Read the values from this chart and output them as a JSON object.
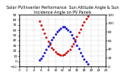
{
  "title": "Solar PV/Inverter Performance  Sun Altitude Angle & Sun Incidence Angle on PV Panels",
  "xlim": [
    0,
    24
  ],
  "ylim_left": [
    -10,
    90
  ],
  "ylim_right": [
    0,
    120
  ],
  "blue_x": [
    5.5,
    6.0,
    6.5,
    7.0,
    7.5,
    8.0,
    8.5,
    9.0,
    9.5,
    10.0,
    10.5,
    11.0,
    11.5,
    12.0,
    12.5,
    13.0,
    13.5,
    14.0,
    14.5,
    15.0,
    15.5,
    16.0,
    16.5,
    17.0,
    17.5,
    18.0,
    18.5,
    19.0
  ],
  "blue_y": [
    2,
    6,
    11,
    17,
    23,
    29,
    35,
    41,
    47,
    52,
    57,
    61,
    64,
    66,
    66,
    64,
    61,
    57,
    51,
    45,
    38,
    31,
    24,
    17,
    10,
    4,
    -1,
    -5
  ],
  "red_x": [
    5.5,
    6.0,
    6.5,
    7.0,
    7.5,
    8.0,
    8.5,
    9.0,
    9.5,
    10.0,
    10.5,
    11.0,
    11.5,
    12.0,
    12.5,
    13.0,
    13.5,
    14.0,
    14.5,
    15.0,
    15.5,
    16.0,
    16.5,
    17.0,
    17.5,
    18.0,
    18.5,
    19.0
  ],
  "red_y": [
    105,
    96,
    87,
    77,
    68,
    59,
    51,
    44,
    39,
    34,
    30,
    28,
    27,
    27,
    28,
    31,
    35,
    40,
    46,
    53,
    61,
    69,
    78,
    86,
    95,
    103,
    110,
    116
  ],
  "xtick_vals": [
    0,
    2,
    4,
    6,
    8,
    10,
    12,
    14,
    16,
    18,
    20,
    22,
    24
  ],
  "ytick_left": [
    -10,
    0,
    10,
    20,
    30,
    40,
    50,
    60,
    70,
    80,
    90
  ],
  "ytick_right": [
    0,
    20,
    40,
    60,
    80,
    100,
    120
  ],
  "background_color": "#ffffff",
  "blue_color": "#0000cc",
  "red_color": "#cc0000",
  "grid_color": "#bbbbbb",
  "title_fontsize": 3.5,
  "tick_fontsize": 3.0,
  "marker_size": 0.8
}
